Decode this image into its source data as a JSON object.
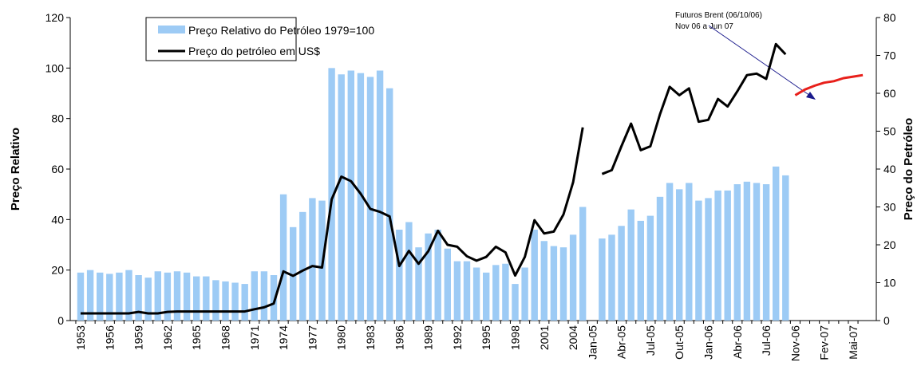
{
  "chart_data": {
    "type": "bar-line",
    "y_label": "Preço Relativo",
    "y2_label": "Preço do Petróleo",
    "annotations": [
      "Futuros Brent (06/10/06)",
      "Nov 06 a Jun 07"
    ],
    "ylim": [
      0,
      120
    ],
    "yticks": [
      0,
      20,
      40,
      60,
      80,
      100,
      120
    ],
    "y2lim": [
      0,
      80
    ],
    "y2ticks": [
      0,
      10,
      20,
      30,
      40,
      50,
      60,
      70,
      80
    ],
    "categories": [
      "1953",
      null,
      null,
      "1956",
      null,
      null,
      "1959",
      null,
      null,
      "1962",
      null,
      null,
      "1965",
      null,
      null,
      "1968",
      null,
      null,
      "1971",
      null,
      null,
      "1974",
      null,
      null,
      "1977",
      null,
      null,
      "1980",
      null,
      null,
      "1983",
      null,
      null,
      "1986",
      null,
      null,
      "1989",
      null,
      null,
      "1992",
      null,
      null,
      "1995",
      null,
      null,
      "1998",
      null,
      null,
      "2001",
      null,
      null,
      "2004",
      null,
      "Jan-05",
      null,
      null,
      "Abr-05",
      null,
      null,
      "Jul-05",
      null,
      null,
      "Out-05",
      null,
      null,
      "Jan-06",
      null,
      null,
      "Abr-06",
      null,
      null,
      "Jul-06",
      null,
      null,
      "Nov-06",
      null,
      null,
      "Fev-07",
      null,
      null,
      "Mai-07",
      null
    ],
    "series": [
      {
        "name": "Preço Relativo do Petróleo 1979=100",
        "type": "bar",
        "axis": "y",
        "color": "#9dcbf5",
        "values": [
          19,
          20,
          19,
          18.5,
          19,
          20,
          18,
          17,
          19.5,
          19,
          19.5,
          19,
          17.5,
          17.5,
          16,
          15.5,
          15,
          14.5,
          19.5,
          19.5,
          18,
          50,
          37,
          43,
          48.5,
          47.5,
          100,
          97.5,
          99,
          98,
          96.5,
          99,
          92,
          36,
          39,
          29,
          34.5,
          36,
          28.5,
          23.5,
          23.5,
          21,
          19,
          22,
          22.5,
          14.5,
          21,
          36,
          31.5,
          29.5,
          29,
          34,
          45,
          null,
          32.5,
          34,
          37.5,
          44,
          39.5,
          41.5,
          49,
          54.5,
          52,
          54.5,
          47.5,
          48.5,
          51.5,
          51.5,
          54,
          55,
          54.5,
          54,
          61,
          57.5,
          null,
          null,
          null,
          null,
          null,
          null,
          null,
          null
        ]
      },
      {
        "name": "Preço do petróleo em US$",
        "type": "line",
        "axis": "y2",
        "color": "#000000",
        "values": [
          1.9,
          1.9,
          1.9,
          1.9,
          1.9,
          1.9,
          2.3,
          1.9,
          1.9,
          2.3,
          2.4,
          2.4,
          2.4,
          2.4,
          2.4,
          2.4,
          2.4,
          2.4,
          3.0,
          3.5,
          4.5,
          13,
          11.8,
          13.2,
          14.4,
          14,
          32,
          38,
          36.8,
          33.5,
          29.5,
          28.7,
          27.5,
          14.4,
          18.4,
          15,
          18.3,
          23.7,
          20,
          19.5,
          17,
          15.8,
          16.8,
          19.5,
          18,
          11.9,
          16.8,
          26.5,
          23,
          23.5,
          28,
          36.5,
          51,
          null,
          38.7,
          39.7,
          46,
          52,
          45,
          46,
          54.5,
          61.7,
          59.5,
          61.3,
          52.5,
          53,
          58.5,
          56.5,
          60.5,
          64.8,
          65.2,
          63.8,
          73,
          70.3,
          null,
          null,
          null,
          null,
          null,
          null,
          null,
          null
        ]
      },
      {
        "type": "line",
        "axis": "y2",
        "color": "#e8201b",
        "values": [
          null,
          null,
          null,
          null,
          null,
          null,
          null,
          null,
          null,
          null,
          null,
          null,
          null,
          null,
          null,
          null,
          null,
          null,
          null,
          null,
          null,
          null,
          null,
          null,
          null,
          null,
          null,
          null,
          null,
          null,
          null,
          null,
          null,
          null,
          null,
          null,
          null,
          null,
          null,
          null,
          null,
          null,
          null,
          null,
          null,
          null,
          null,
          null,
          null,
          null,
          null,
          null,
          null,
          null,
          null,
          null,
          null,
          null,
          null,
          null,
          null,
          null,
          null,
          null,
          null,
          null,
          null,
          null,
          null,
          null,
          null,
          null,
          null,
          null,
          59.5,
          61,
          62,
          62.8,
          63.2,
          64,
          64.4,
          64.8
        ]
      }
    ]
  }
}
